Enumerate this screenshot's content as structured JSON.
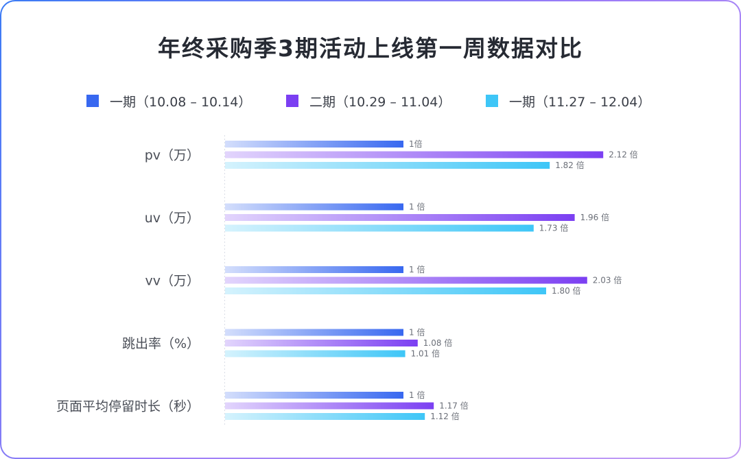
{
  "chart_data": {
    "type": "bar",
    "orientation": "horizontal",
    "title": "年终采购季3期活动上线第一周数据对比",
    "categories": [
      "pv（万）",
      "uv（万）",
      "vv（万）",
      "跳出率（%）",
      "页面平均停留时长（秒）"
    ],
    "series": [
      {
        "name": "一期（10.08 – 10.14）",
        "color": "#3868f0",
        "values": [
          1,
          1,
          1,
          1,
          1
        ],
        "labels": [
          "1倍",
          "1 倍",
          "1 倍",
          "1 倍",
          "1 倍"
        ]
      },
      {
        "name": "二期（10.29 – 11.04）",
        "color": "#7b3ff2",
        "values": [
          2.12,
          1.96,
          2.03,
          1.08,
          1.17
        ],
        "labels": [
          "2.12 倍",
          "1.96 倍",
          "2.03 倍",
          "1.08 倍",
          "1.17 倍"
        ]
      },
      {
        "name": "一期（11.27 – 12.04）",
        "color": "#3ec6f7",
        "values": [
          1.82,
          1.73,
          1.8,
          1.01,
          1.12
        ],
        "labels": [
          "1.82 倍",
          "1.73 倍",
          "1.80 倍",
          "1.01 倍",
          "1.12 倍"
        ]
      }
    ],
    "legend_position": "top",
    "grid": false
  }
}
